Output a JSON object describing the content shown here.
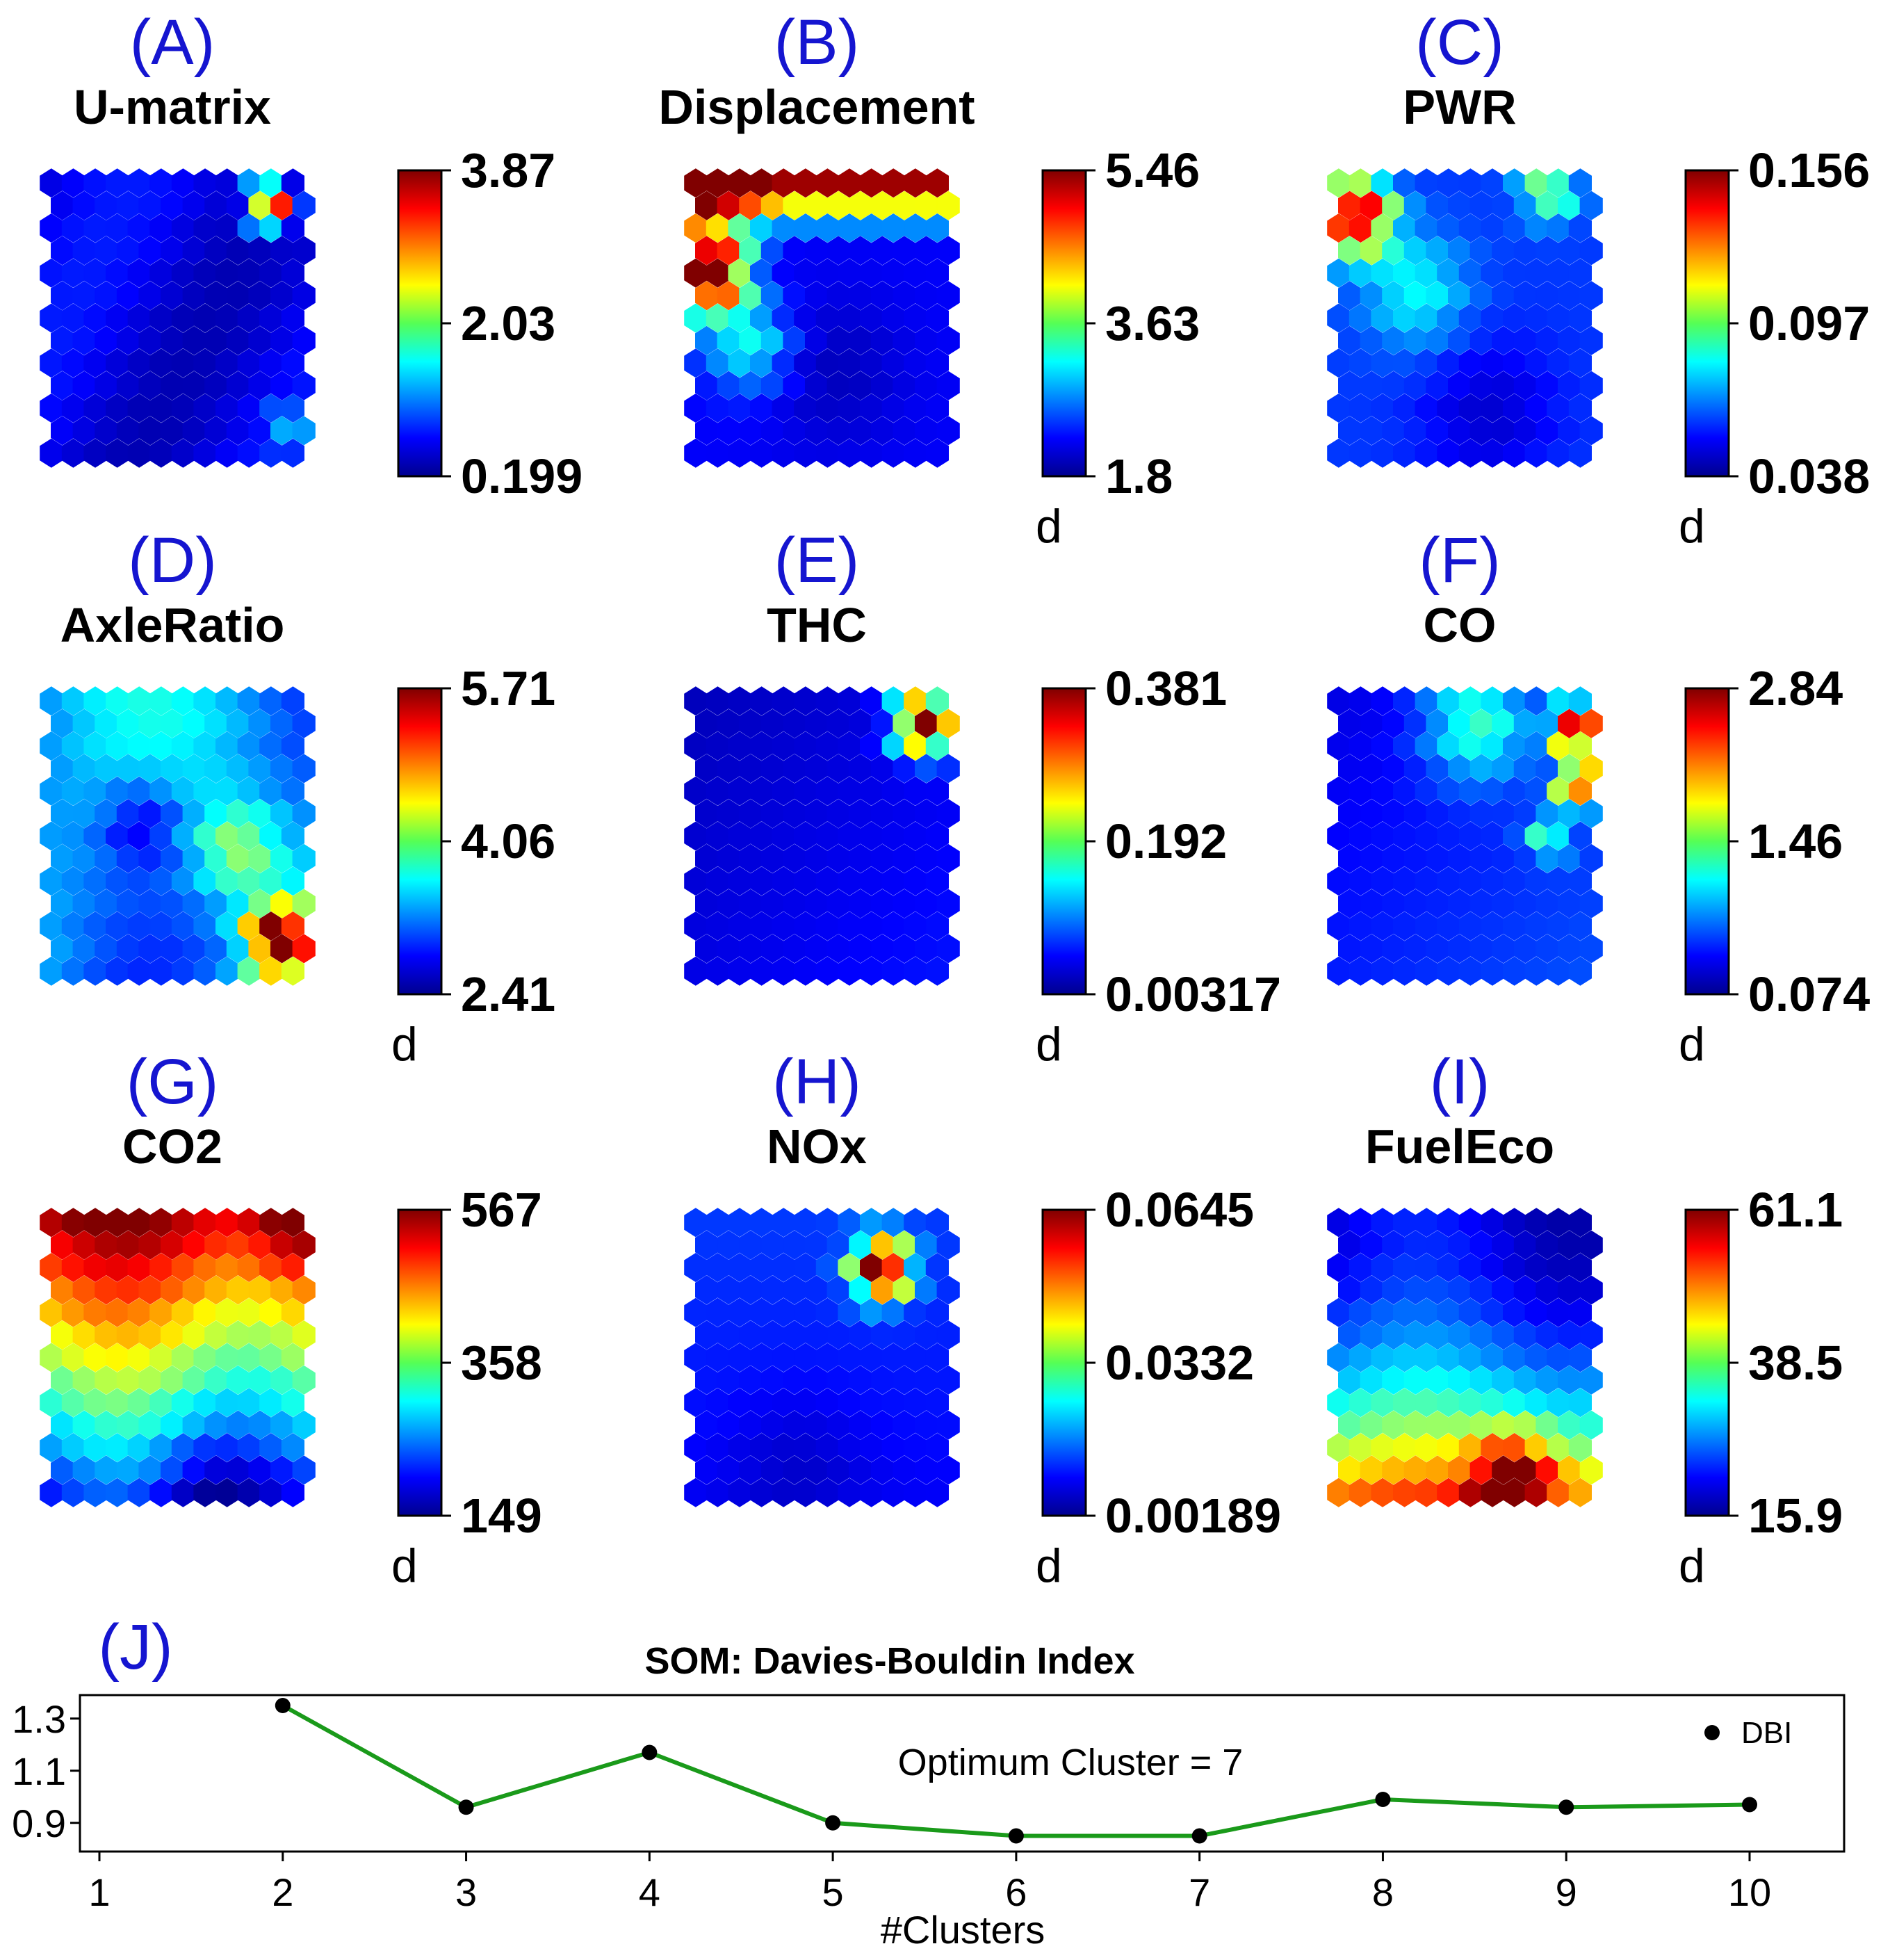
{
  "chart_data": [
    {
      "type": "heatmap",
      "letter": "(A)",
      "title": "U-matrix",
      "colorbar_ticks": [
        "3.87",
        "2.03",
        "0.199"
      ],
      "colorbar_unit": "",
      "range": [
        0.199,
        3.87
      ],
      "colormap": "jet",
      "grid_shape": "hexagonal",
      "hotspot": "top-right corner",
      "hotspot_strength": "local peak"
    },
    {
      "type": "heatmap",
      "letter": "(B)",
      "title": "Displacement",
      "colorbar_ticks": [
        "5.46",
        "3.63",
        "1.8"
      ],
      "colorbar_unit": "d",
      "range": [
        1.8,
        5.46
      ],
      "colormap": "jet",
      "grid_shape": "hexagonal",
      "hotspot": "top edge and upper-left",
      "hotspot_strength": "high along top row"
    },
    {
      "type": "heatmap",
      "letter": "(C)",
      "title": "PWR",
      "colorbar_ticks": [
        "0.156",
        "0.097",
        "0.038"
      ],
      "colorbar_unit": "d",
      "range": [
        0.038,
        0.156
      ],
      "colormap": "jet",
      "grid_shape": "hexagonal",
      "hotspot": "top-left corner",
      "hotspot_strength": "local peak"
    },
    {
      "type": "heatmap",
      "letter": "(D)",
      "title": "AxleRatio",
      "colorbar_ticks": [
        "5.71",
        "4.06",
        "2.41"
      ],
      "colorbar_unit": "d",
      "range": [
        2.41,
        5.71
      ],
      "colormap": "jet",
      "grid_shape": "hexagonal",
      "hotspot": "bottom-right corner",
      "hotspot_strength": "local peak"
    },
    {
      "type": "heatmap",
      "letter": "(E)",
      "title": "THC",
      "colorbar_ticks": [
        "0.381",
        "0.192",
        "0.00317"
      ],
      "colorbar_unit": "d",
      "range": [
        0.00317,
        0.381
      ],
      "colormap": "jet",
      "grid_shape": "hexagonal",
      "hotspot": "top-right corner",
      "hotspot_strength": "local peak"
    },
    {
      "type": "heatmap",
      "letter": "(F)",
      "title": "CO",
      "colorbar_ticks": [
        "2.84",
        "1.46",
        "0.074"
      ],
      "colorbar_unit": "d",
      "range": [
        0.074,
        2.84
      ],
      "colormap": "jet",
      "grid_shape": "hexagonal",
      "hotspot": "right edge, upper part",
      "hotspot_strength": "local peak"
    },
    {
      "type": "heatmap",
      "letter": "(G)",
      "title": "CO2",
      "colorbar_ticks": [
        "567",
        "358",
        "149"
      ],
      "colorbar_unit": "d",
      "range": [
        149,
        567
      ],
      "colormap": "jet",
      "grid_shape": "hexagonal",
      "hotspot": "top rows",
      "hotspot_strength": "gradient top high to bottom low"
    },
    {
      "type": "heatmap",
      "letter": "(H)",
      "title": "NOx",
      "colorbar_ticks": [
        "0.0645",
        "0.0332",
        "0.00189"
      ],
      "colorbar_unit": "d",
      "range": [
        0.00189,
        0.0645
      ],
      "colormap": "jet",
      "grid_shape": "hexagonal",
      "hotspot": "upper-right region",
      "hotspot_strength": "local peak"
    },
    {
      "type": "heatmap",
      "letter": "(I)",
      "title": "FuelEco",
      "colorbar_ticks": [
        "61.1",
        "38.5",
        "15.9"
      ],
      "colorbar_unit": "d",
      "range": [
        15.9,
        61.1
      ],
      "colormap": "jet",
      "grid_shape": "hexagonal",
      "hotspot": "bottom rows",
      "hotspot_strength": "gradient bottom high to top low"
    },
    {
      "type": "line",
      "letter": "(J)",
      "title": "SOM: Davies-Bouldin Index",
      "xlabel": "#Clusters",
      "ylabel": "",
      "annotation": "Optimum Cluster = 7",
      "legend": {
        "label": "DBI",
        "placement": "top-right"
      },
      "line_color": "#1a9a1a",
      "xlim": [
        1,
        10.5
      ],
      "ylim": [
        0.79,
        1.39
      ],
      "x_ticks": [
        "1",
        "2",
        "3",
        "4",
        "5",
        "6",
        "7",
        "8",
        "9",
        "10"
      ],
      "y_ticks": [
        "1.3",
        "1.1",
        "0.9"
      ],
      "y_tick_values": [
        1.3,
        1.1,
        0.9
      ],
      "grid": false,
      "x": [
        2,
        3,
        4,
        5,
        6,
        7,
        8,
        9,
        10
      ],
      "y": [
        1.35,
        0.96,
        1.17,
        0.9,
        0.85,
        0.85,
        0.99,
        0.96,
        0.97
      ]
    }
  ]
}
